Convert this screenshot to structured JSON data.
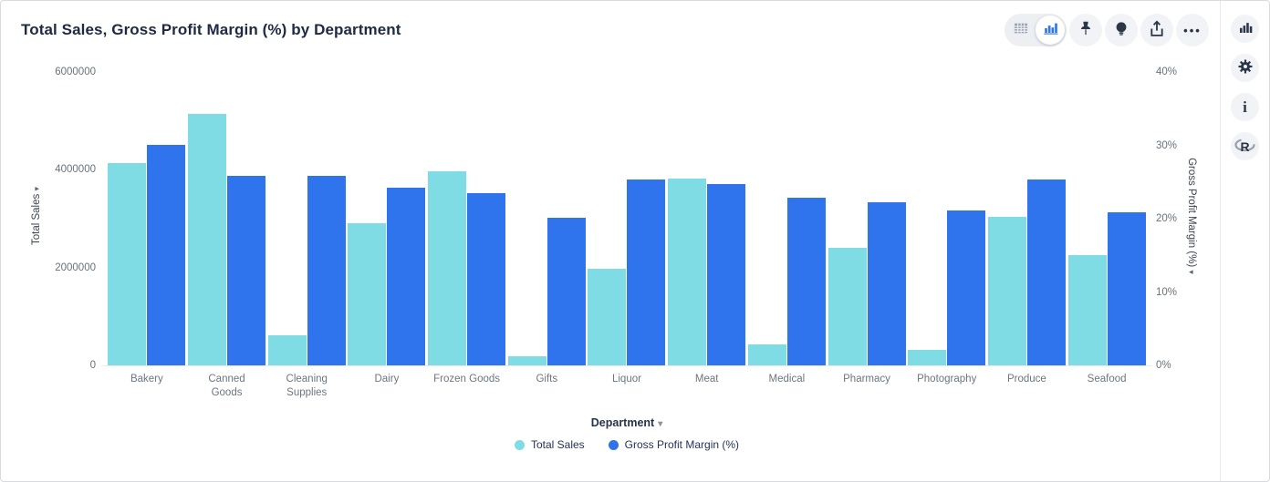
{
  "header": {
    "title": "Total Sales, Gross Profit Margin (%) by Department"
  },
  "toolbar": {
    "view_toggle": {
      "selected": "chart",
      "options": [
        "table-view",
        "chart-view"
      ]
    },
    "buttons": [
      {
        "name": "pin-button",
        "icon": "pin-icon"
      },
      {
        "name": "insights-button",
        "icon": "lightbulb-icon"
      },
      {
        "name": "share-button",
        "icon": "share-icon"
      },
      {
        "name": "more-button",
        "icon": "ellipsis-icon"
      }
    ],
    "ellipsis_glyph": "•••"
  },
  "side_rail": {
    "buttons": [
      {
        "name": "chart-type-button",
        "icon": "bar-chart-icon"
      },
      {
        "name": "settings-button",
        "icon": "gear-icon"
      },
      {
        "name": "info-button",
        "icon": "info-icon"
      },
      {
        "name": "r-analysis-button",
        "icon": "r-logo-icon"
      }
    ],
    "info_glyph": "i",
    "r_glyph": "R"
  },
  "colors": {
    "total_sales": "#7fdbe4",
    "gross_profit_margin": "#2f74ec",
    "accent_blue": "#2e75ee",
    "icon_navy": "#2b3648",
    "title_text": "#1e2a43"
  },
  "chart_data": {
    "type": "bar",
    "title": "Total Sales, Gross Profit Margin (%) by Department",
    "categories": [
      "Bakery",
      "Canned Goods",
      "Cleaning Supplies",
      "Dairy",
      "Frozen Goods",
      "Gifts",
      "Liquor",
      "Meat",
      "Medical",
      "Pharmacy",
      "Photography",
      "Produce",
      "Seafood"
    ],
    "series": [
      {
        "name": "Total Sales",
        "axis": "left",
        "color": "#7fdbe4",
        "values": [
          4140000,
          5140000,
          620000,
          2910000,
          3970000,
          190000,
          1970000,
          3820000,
          430000,
          2400000,
          320000,
          3040000,
          2260000
        ]
      },
      {
        "name": "Gross Profit Margin (%)",
        "axis": "right",
        "color": "#2f74ec",
        "values": [
          30.1,
          25.9,
          25.8,
          24.2,
          23.5,
          20.1,
          25.3,
          24.7,
          22.9,
          22.2,
          21.1,
          25.3,
          20.9
        ]
      }
    ],
    "xlabel": "Department",
    "y_left": {
      "label": "Total Sales",
      "max": 6000000,
      "ticks": [
        "0",
        "2000000",
        "4000000",
        "6000000"
      ]
    },
    "y_right": {
      "label": "Gross Profit Margin (%)",
      "max": 40,
      "ticks": [
        "0%",
        "10%",
        "20%",
        "30%",
        "40%"
      ]
    },
    "legend": [
      "Total Sales",
      "Gross Profit Margin (%)"
    ],
    "legend_position": "bottom",
    "grid": false,
    "sort_arrow_glyph": "▾",
    "dropdown_arrow_glyph": "▾"
  }
}
